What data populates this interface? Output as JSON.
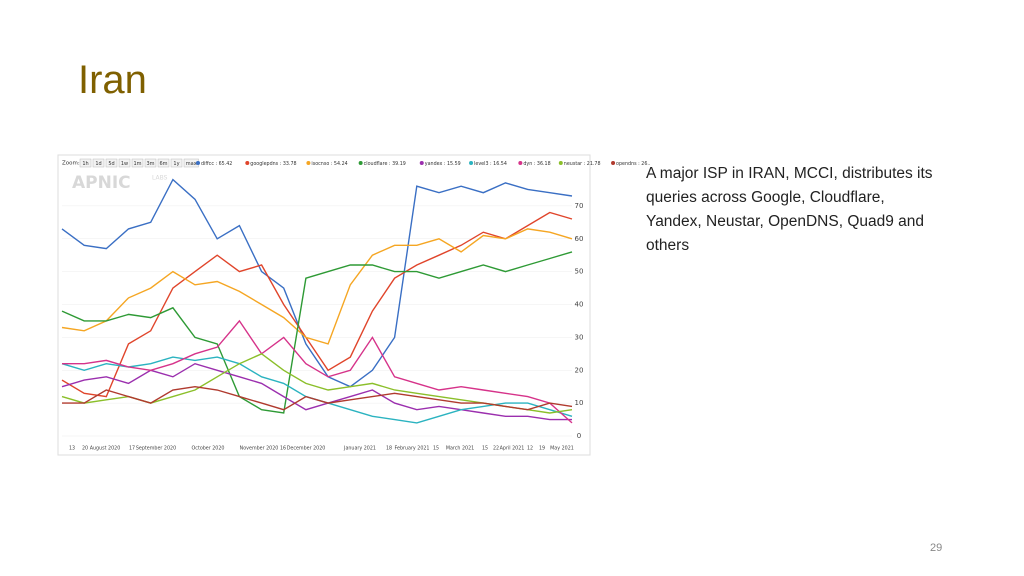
{
  "slide": {
    "title": "Iran",
    "body_lines": [
      "A major ISP in IRAN, MCCI, distributes its",
      "queries across Google, Cloudflare,",
      "Yandex, Neustar, OpenDNS, Quad9 and",
      "others"
    ],
    "page_number": "29"
  },
  "chart_data": {
    "type": "line",
    "logo": "APNIC",
    "logo_sub": "LABS",
    "zoom_label": "Zoom:",
    "zoom_buttons": [
      "1h",
      "1d",
      "5d",
      "1w",
      "1m",
      "3m",
      "6m",
      "1y",
      "max"
    ],
    "xtick_labels": [
      "13",
      "20",
      "August 2020",
      "17",
      "September 2020",
      "October 2020",
      "November 2020",
      "16",
      "December 2020",
      "January 2021",
      "18",
      "February 2021",
      "15",
      "March 2021",
      "15",
      "22",
      "April 2021",
      "12",
      "19",
      "May 2021"
    ],
    "ylim": [
      0,
      80
    ],
    "yticks": [
      0,
      10,
      20,
      30,
      40,
      50,
      60,
      70
    ],
    "grid": true,
    "series": [
      {
        "name": "diffcc : 65.42",
        "color": "#3a6fc4",
        "values": [
          63,
          58,
          57,
          63,
          65,
          78,
          72,
          60,
          64,
          50,
          45,
          28,
          18,
          15,
          20,
          30,
          76,
          74,
          76,
          74,
          77,
          75,
          74,
          73
        ]
      },
      {
        "name": "googlepdns : 33.78",
        "color": "#e0452b",
        "values": [
          17,
          13,
          12,
          28,
          32,
          45,
          50,
          55,
          50,
          52,
          40,
          30,
          20,
          24,
          38,
          48,
          52,
          55,
          58,
          62,
          60,
          64,
          68,
          66
        ]
      },
      {
        "name": "isocnso : 54.24",
        "color": "#f5a623",
        "values": [
          33,
          32,
          35,
          42,
          45,
          50,
          46,
          47,
          44,
          40,
          36,
          30,
          28,
          46,
          55,
          58,
          58,
          60,
          56,
          61,
          60,
          63,
          62,
          60
        ]
      },
      {
        "name": "cloudflare : 39.19",
        "color": "#2e9a35",
        "values": [
          38,
          35,
          35,
          37,
          36,
          39,
          30,
          28,
          12,
          8,
          7,
          48,
          50,
          52,
          52,
          50,
          50,
          48,
          50,
          52,
          50,
          52,
          54,
          56
        ]
      },
      {
        "name": "yandex : 15.59",
        "color": "#9b2fae",
        "values": [
          15,
          17,
          18,
          16,
          20,
          18,
          22,
          20,
          18,
          16,
          12,
          8,
          10,
          12,
          14,
          10,
          8,
          9,
          8,
          7,
          6,
          6,
          5,
          5
        ]
      },
      {
        "name": "level3 : 16.54",
        "color": "#2bb3c0",
        "values": [
          22,
          20,
          22,
          21,
          22,
          24,
          23,
          24,
          22,
          18,
          16,
          12,
          10,
          8,
          6,
          5,
          4,
          6,
          8,
          9,
          10,
          10,
          8,
          6
        ]
      },
      {
        "name": "dyn : 36.18",
        "color": "#d6338a",
        "values": [
          22,
          22,
          23,
          21,
          20,
          22,
          25,
          27,
          35,
          25,
          30,
          22,
          18,
          20,
          30,
          18,
          16,
          14,
          15,
          14,
          13,
          12,
          10,
          4
        ]
      },
      {
        "name": "neustar : 21.78",
        "color": "#8bbf2a",
        "values": [
          12,
          10,
          11,
          12,
          10,
          12,
          14,
          18,
          22,
          25,
          20,
          16,
          14,
          15,
          16,
          14,
          13,
          12,
          11,
          10,
          9,
          8,
          7,
          8
        ]
      },
      {
        "name": "opendns : 26..",
        "color": "#b03a2e",
        "values": [
          10,
          10,
          14,
          12,
          10,
          14,
          15,
          14,
          12,
          10,
          8,
          12,
          10,
          11,
          12,
          13,
          12,
          11,
          10,
          10,
          9,
          8,
          10,
          9
        ]
      }
    ]
  }
}
